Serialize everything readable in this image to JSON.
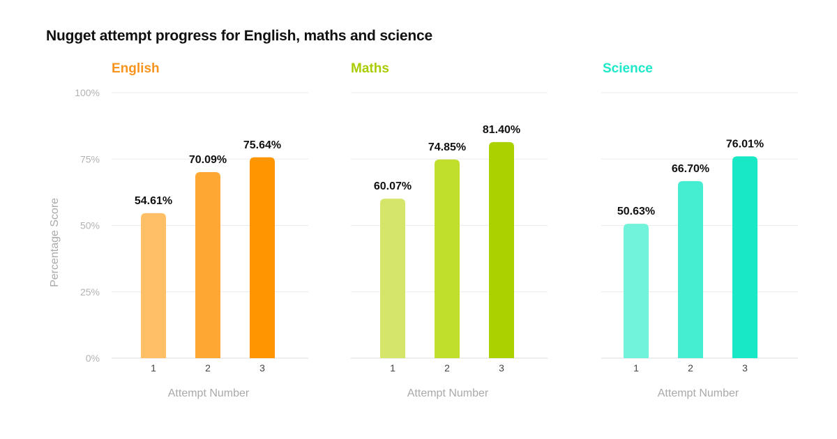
{
  "title": "Nugget attempt progress for English, maths and science",
  "chart_data": {
    "type": "bar",
    "ylabel": "Percentage Score",
    "xlabel": "Attempt Number",
    "ylim": [
      0,
      100
    ],
    "yticks": [
      "0%",
      "25%",
      "50%",
      "75%",
      "100%"
    ],
    "grid": true,
    "panels": [
      {
        "name": "English",
        "title_color": "#f7941d",
        "categories": [
          "1",
          "2",
          "3"
        ],
        "values": [
          54.61,
          70.09,
          75.64
        ],
        "labels": [
          "54.61%",
          "70.09%",
          "75.64%"
        ],
        "colors": [
          "#ffbf66",
          "#ffa733",
          "#ff9500"
        ]
      },
      {
        "name": "Maths",
        "title_color": "#a8cc00",
        "categories": [
          "1",
          "2",
          "3"
        ],
        "values": [
          60.07,
          74.85,
          81.4
        ],
        "labels": [
          "60.07%",
          "74.85%",
          "81.40%"
        ],
        "colors": [
          "#d4e56a",
          "#c0df2c",
          "#acd100"
        ]
      },
      {
        "name": "Science",
        "title_color": "#1ee8c7",
        "categories": [
          "1",
          "2",
          "3"
        ],
        "values": [
          50.63,
          66.7,
          76.01
        ],
        "labels": [
          "50.63%",
          "66.70%",
          "76.01%"
        ],
        "colors": [
          "#70f2db",
          "#45edd1",
          "#18e8c6"
        ]
      }
    ]
  }
}
